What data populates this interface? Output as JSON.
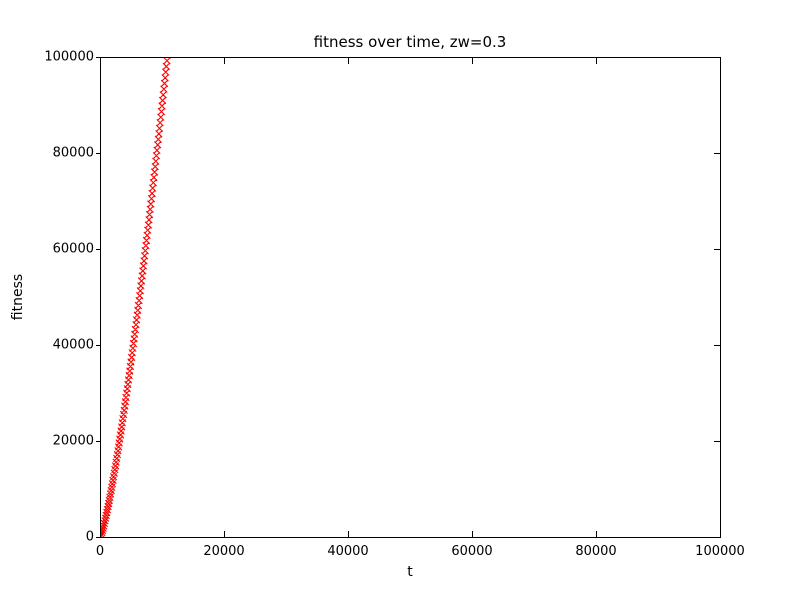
{
  "chart_data": {
    "type": "scatter",
    "title": "fitness over time, zw=0.3",
    "xlabel": "t",
    "ylabel": "fitness",
    "xlim": [
      0,
      100000
    ],
    "ylim": [
      0,
      100000
    ],
    "xticks": [
      0,
      20000,
      40000,
      60000,
      80000,
      100000
    ],
    "xtick_labels": [
      "0",
      "20000",
      "40000",
      "60000",
      "80000",
      "100000"
    ],
    "yticks": [
      0,
      20000,
      40000,
      60000,
      80000,
      100000
    ],
    "ytick_labels": [
      "0",
      "20000",
      "40000",
      "60000",
      "80000",
      "100000"
    ],
    "grid": false,
    "legend": null,
    "marker": "x",
    "marker_color": "#ff0000",
    "spine_color": "#000000",
    "series": [
      {
        "name": "fitness",
        "x": [
          0,
          100,
          200,
          300,
          400,
          500,
          600,
          700,
          800,
          900,
          1000,
          1100,
          1200,
          1300,
          1400,
          1500,
          1600,
          1700,
          1800,
          1900,
          2000,
          2100,
          2200,
          2300,
          2400,
          2500,
          2600,
          2700,
          2800,
          2900,
          3000,
          3100,
          3200,
          3300,
          3400,
          3500,
          3600,
          3700,
          3800,
          3900,
          4000,
          4100,
          4200,
          4300,
          4400,
          4500,
          4600,
          4700,
          4800,
          4900,
          5000,
          5100,
          5200,
          5300,
          5400,
          5500,
          5600,
          5700,
          5800,
          5900,
          6000,
          6100,
          6200,
          6300,
          6400,
          6500,
          6600,
          6700,
          6800,
          6900,
          7000,
          7100,
          7200,
          7300,
          7400,
          7500,
          7600,
          7700,
          7800,
          7900,
          8000,
          8100,
          8200,
          8300,
          8400,
          8500,
          8600,
          8700,
          8800,
          8900,
          9000,
          9100,
          9200,
          9300,
          9400,
          9500,
          9600,
          9700,
          9800,
          9900,
          10000,
          10100,
          10200,
          10300,
          10400,
          10500,
          10600,
          10700,
          10800,
          10900
        ],
        "y": [
          0,
          226,
          555,
          941,
          1368,
          1828,
          2317,
          2830,
          3367,
          3924,
          4501,
          5094,
          5704,
          6330,
          6970,
          7624,
          8291,
          8971,
          9663,
          10367,
          11081,
          11807,
          12542,
          13287,
          14042,
          14811,
          15586,
          16369,
          17162,
          17963,
          18772,
          19590,
          20415,
          21248,
          22089,
          22937,
          23793,
          24655,
          25525,
          26402,
          27285,
          28175,
          29072,
          29975,
          30883,
          31800,
          32721,
          33648,
          34582,
          35522,
          36467,
          37418,
          38375,
          39336,
          40304,
          41278,
          42255,
          43239,
          44228,
          45222,
          46221,
          47225,
          48234,
          49248,
          50267,
          51290,
          52318,
          53351,
          54388,
          55430,
          56477,
          57527,
          58582,
          59642,
          60706,
          61775,
          62848,
          63926,
          65007,
          66092,
          67182,
          68276,
          69373,
          70475,
          71582,
          72692,
          73806,
          74924,
          76045,
          77170,
          78300,
          79433,
          80568,
          81709,
          82853,
          84001,
          85151,
          86307,
          87465,
          88627,
          89793,
          90962,
          92134,
          93310,
          94490,
          95671,
          96856,
          98045,
          99237,
          100434
        ]
      }
    ]
  }
}
